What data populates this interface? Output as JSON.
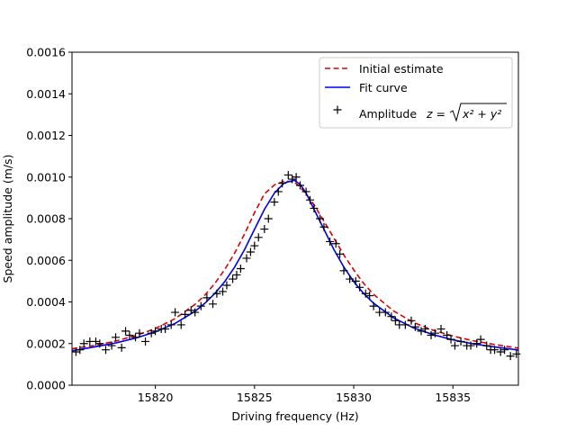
{
  "chart_data": {
    "type": "scatter",
    "title": "",
    "xlabel": "Driving frequency (Hz)",
    "ylabel": "Speed amplitude (m/s)",
    "xlim": [
      15815.8,
      15838.3
    ],
    "ylim": [
      0.0,
      0.0016
    ],
    "xticks": [
      15820,
      15825,
      15830,
      15835
    ],
    "xtick_labels": [
      "15820",
      "15825",
      "15830",
      "15835"
    ],
    "yticks": [
      0.0,
      0.0002,
      0.0004,
      0.0006,
      0.0008,
      0.001,
      0.0012,
      0.0014,
      0.0016
    ],
    "ytick_labels": [
      "0.0000",
      "0.0002",
      "0.0004",
      "0.0006",
      "0.0008",
      "0.0010",
      "0.0012",
      "0.0014",
      "0.0016"
    ],
    "grid": false,
    "legend_position": "top-right",
    "colors": {
      "initial": "#dd0000",
      "fit": "#0000ee",
      "data": "#000000"
    },
    "series": [
      {
        "name": "Initial estimate",
        "kind": "line",
        "style": "dashed",
        "x": [
          15815.8,
          15817.0,
          15818.0,
          15819.0,
          15820.0,
          15821.0,
          15822.0,
          15822.5,
          15823.0,
          15823.5,
          15824.0,
          15824.5,
          15825.0,
          15825.5,
          15826.0,
          15826.5,
          15827.0,
          15827.3,
          15827.6,
          15828.0,
          15828.5,
          15829.0,
          15829.5,
          15830.0,
          15830.5,
          15831.0,
          15832.0,
          15833.0,
          15834.0,
          15835.0,
          15836.0,
          15837.0,
          15838.3
        ],
        "y": [
          0.000175,
          0.000192,
          0.000212,
          0.000238,
          0.000272,
          0.00032,
          0.000388,
          0.000433,
          0.000489,
          0.000556,
          0.000635,
          0.000727,
          0.000829,
          0.000919,
          0.000962,
          0.000981,
          0.000977,
          0.000952,
          0.000919,
          0.000867,
          0.000788,
          0.000707,
          0.000626,
          0.000554,
          0.000489,
          0.000437,
          0.000357,
          0.000302,
          0.000264,
          0.000236,
          0.000214,
          0.000197,
          0.000178
        ]
      },
      {
        "name": "Fit curve",
        "kind": "line",
        "style": "solid",
        "x": [
          15815.8,
          15817.0,
          15818.0,
          15819.0,
          15820.0,
          15821.0,
          15822.0,
          15822.5,
          15823.0,
          15823.5,
          15824.0,
          15824.5,
          15825.0,
          15825.5,
          15826.0,
          15826.5,
          15827.0,
          15827.3,
          15827.6,
          15828.0,
          15828.5,
          15829.0,
          15829.5,
          15830.0,
          15830.5,
          15831.0,
          15832.0,
          15833.0,
          15834.0,
          15835.0,
          15836.0,
          15837.0,
          15838.3
        ],
        "y": [
          0.000165,
          0.000185,
          0.000203,
          0.000226,
          0.000256,
          0.000297,
          0.000355,
          0.000394,
          0.000441,
          0.000498,
          0.000568,
          0.000652,
          0.000749,
          0.000845,
          0.000923,
          0.000972,
          0.000985,
          0.000965,
          0.000923,
          0.000845,
          0.000749,
          0.000652,
          0.000568,
          0.000498,
          0.000441,
          0.000394,
          0.000324,
          0.000276,
          0.000243,
          0.000218,
          0.000199,
          0.000185,
          0.000169
        ]
      },
      {
        "name": "Amplitude",
        "legend_formula_base": "z = ",
        "legend_formula_radicand": "x² + y²",
        "kind": "scatter",
        "marker": "+",
        "x": [
          15816.0,
          15816.2,
          15816.4,
          15816.7,
          15817.0,
          15817.2,
          15817.5,
          15817.8,
          15818.0,
          15818.3,
          15818.5,
          15818.7,
          15819.0,
          15819.2,
          15819.5,
          15819.8,
          15820.0,
          15820.3,
          15820.5,
          15820.8,
          15821.0,
          15821.3,
          15821.5,
          15821.8,
          15822.0,
          15822.3,
          15822.6,
          15822.9,
          15823.1,
          15823.4,
          15823.6,
          15823.9,
          15824.1,
          15824.3,
          15824.6,
          15824.8,
          15825.0,
          15825.2,
          15825.5,
          15825.7,
          15826.0,
          15826.2,
          15826.4,
          15826.7,
          15826.9,
          15827.1,
          15827.3,
          15827.6,
          15827.8,
          15828.0,
          15828.3,
          15828.5,
          15828.8,
          15829.1,
          15829.3,
          15829.5,
          15829.8,
          15830.1,
          15830.3,
          15830.6,
          15830.8,
          15831.0,
          15831.3,
          15831.6,
          15831.9,
          15832.1,
          15832.3,
          15832.6,
          15832.9,
          15833.1,
          15833.4,
          15833.6,
          15833.9,
          15834.1,
          15834.4,
          15834.7,
          15834.9,
          15835.1,
          15835.4,
          15835.7,
          15835.9,
          15836.2,
          15836.4,
          15836.7,
          15836.9,
          15837.1,
          15837.4,
          15837.6,
          15837.9,
          15838.2
        ],
        "y": [
          0.00016,
          0.00017,
          0.0002,
          0.00021,
          0.00021,
          0.0002,
          0.00017,
          0.00019,
          0.00023,
          0.00018,
          0.00026,
          0.00024,
          0.00023,
          0.00025,
          0.00021,
          0.00025,
          0.00026,
          0.00027,
          0.00027,
          0.00029,
          0.00035,
          0.00029,
          0.00034,
          0.00036,
          0.00035,
          0.00038,
          0.00042,
          0.00039,
          0.00044,
          0.00045,
          0.00048,
          0.00051,
          0.00053,
          0.00056,
          0.00061,
          0.00064,
          0.00067,
          0.00071,
          0.00075,
          0.0008,
          0.00088,
          0.00093,
          0.00097,
          0.00101,
          0.00099,
          0.001,
          0.00096,
          0.00093,
          0.00089,
          0.00085,
          0.0008,
          0.00076,
          0.00069,
          0.00068,
          0.00063,
          0.00055,
          0.00051,
          0.0005,
          0.00047,
          0.00044,
          0.00043,
          0.00038,
          0.00035,
          0.00035,
          0.00033,
          0.00031,
          0.00029,
          0.00029,
          0.00031,
          0.00028,
          0.00026,
          0.00027,
          0.00024,
          0.00025,
          0.00027,
          0.00024,
          0.00022,
          0.00019,
          0.00021,
          0.00019,
          0.00019,
          0.0002,
          0.00022,
          0.00019,
          0.00017,
          0.00017,
          0.00016,
          0.00017,
          0.00014,
          0.00015
        ]
      }
    ]
  }
}
